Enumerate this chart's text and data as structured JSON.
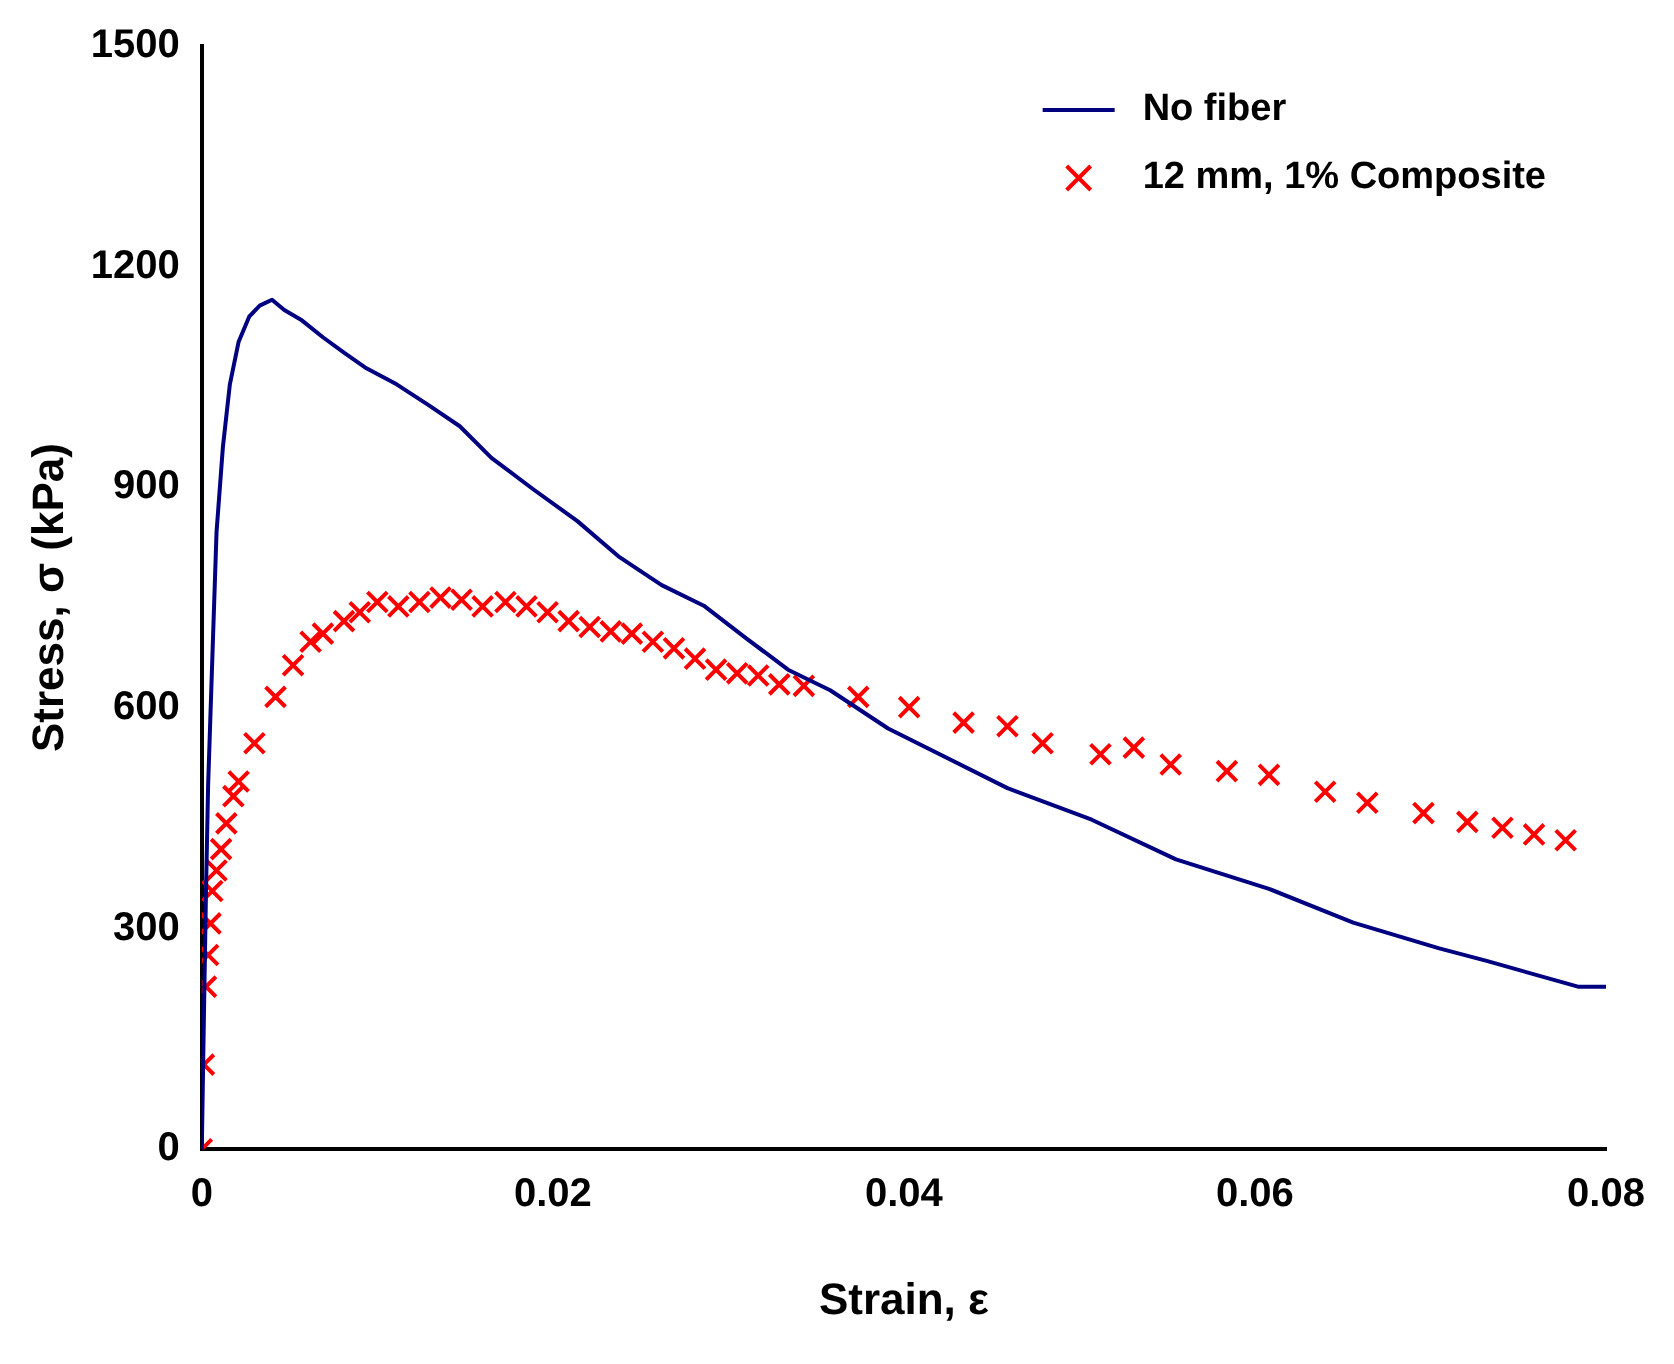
{
  "chart_data": {
    "type": "line",
    "xlabel": "Strain, ε",
    "ylabel": "Stress, σ (kPa)",
    "xlim": [
      0,
      0.08
    ],
    "xticks": [
      0,
      0.02,
      0.04,
      0.06,
      0.08
    ],
    "ylim": [
      0,
      1500
    ],
    "yticks": [
      0,
      300,
      600,
      900,
      1200,
      1500
    ],
    "grid": false,
    "legend": "top right",
    "series": [
      {
        "name": "No fiber",
        "marker": "none",
        "color": "#000080",
        "x": [
          0,
          0.00012,
          0.00024,
          0.00036,
          0.0006,
          0.00084,
          0.0012,
          0.0016,
          0.0021,
          0.0027,
          0.0033,
          0.004,
          0.0047,
          0.0057,
          0.0069,
          0.0081,
          0.0093,
          0.0111,
          0.0129,
          0.0147,
          0.0165,
          0.0189,
          0.0214,
          0.0238,
          0.0262,
          0.0286,
          0.031,
          0.0334,
          0.0358,
          0.0391,
          0.0459,
          0.0507,
          0.0555,
          0.0608,
          0.0656,
          0.0705,
          0.0732,
          0.0784,
          0.08
        ],
        "values": [
          0,
          178,
          351,
          494,
          667,
          839,
          954,
          1040,
          1098,
          1132,
          1147,
          1155,
          1141,
          1127,
          1104,
          1083,
          1063,
          1040,
          1012,
          983,
          940,
          897,
          854,
          805,
          767,
          739,
          695,
          652,
          624,
          572,
          491,
          448,
          394,
          354,
          308,
          273,
          256,
          221,
          221
        ]
      },
      {
        "name": "12 mm, 1% Composite",
        "type": "scatter",
        "marker": "cross",
        "color": "#ff0000",
        "x": [
          0,
          0.00012,
          0.00024,
          0.00036,
          0.0005,
          0.0006,
          0.00084,
          0.0011,
          0.0014,
          0.0018,
          0.0021,
          0.003,
          0.0042,
          0.0052,
          0.0062,
          0.0069,
          0.0081,
          0.009,
          0.01,
          0.0112,
          0.0124,
          0.0136,
          0.0148,
          0.016,
          0.0173,
          0.0185,
          0.0197,
          0.0209,
          0.0221,
          0.0233,
          0.0245,
          0.0257,
          0.0269,
          0.0281,
          0.0293,
          0.0305,
          0.0317,
          0.0329,
          0.0343,
          0.0374,
          0.0403,
          0.0434,
          0.0459,
          0.0479,
          0.0512,
          0.0531,
          0.0552,
          0.0584,
          0.0608,
          0.064,
          0.0664,
          0.0696,
          0.0721,
          0.0741,
          0.0759,
          0.0777
        ],
        "values": [
          0,
          115,
          221,
          264,
          307,
          351,
          379,
          408,
          443,
          480,
          500,
          552,
          615,
          658,
          690,
          701,
          718,
          730,
          744,
          738,
          744,
          750,
          747,
          738,
          744,
          738,
          730,
          718,
          710,
          704,
          701,
          690,
          681,
          667,
          652,
          647,
          644,
          632,
          630,
          615,
          601,
          580,
          575,
          552,
          537,
          546,
          523,
          514,
          509,
          486,
          471,
          457,
          445,
          437,
          428,
          420
        ]
      }
    ]
  }
}
